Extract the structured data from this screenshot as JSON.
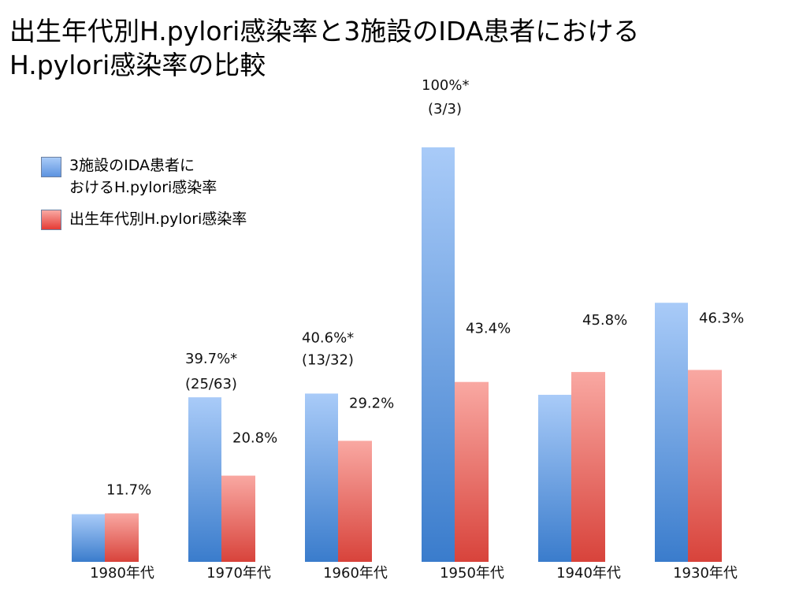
{
  "chart_data": {
    "type": "bar",
    "title": "出生年代別H.pylori感染率と3施設のIDA患者におけるH.pylori感染率の比較",
    "categories": [
      "1980年代",
      "1970年代",
      "1960年代",
      "1950年代",
      "1940年代",
      "1930年代"
    ],
    "ylim": [
      0,
      100
    ],
    "grid": false,
    "legend_position": "top-left",
    "series": [
      {
        "name": "3施設のIDA患者におけるH.pylori感染率",
        "color": "#6f9fe6",
        "values": [
          11.5,
          39.7,
          40.6,
          100,
          40.3,
          62.5
        ],
        "labels": [
          [
            "",
            ""
          ],
          [
            "39.7%*",
            "(25/63)"
          ],
          [
            "40.6%*",
            "(13/32)"
          ],
          [
            "100%*",
            "(3/3)"
          ],
          [
            "",
            ""
          ],
          [
            "",
            ""
          ]
        ]
      },
      {
        "name": "出生年代別H.pylori感染率",
        "color": "#ec6a62",
        "values": [
          11.7,
          20.8,
          29.2,
          43.4,
          45.8,
          46.3
        ],
        "labels": [
          "11.7%",
          "20.8%",
          "29.2%",
          "43.4%",
          "45.8%",
          "46.3%"
        ]
      }
    ]
  }
}
